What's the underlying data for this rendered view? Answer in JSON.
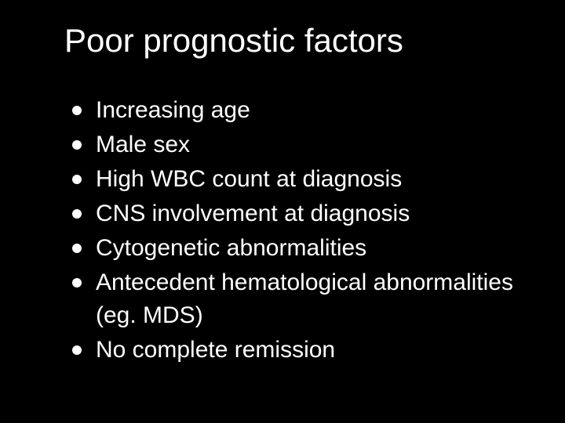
{
  "slide": {
    "title": "Poor prognostic factors",
    "background_color": "#000000",
    "text_color": "#ffffff",
    "title_fontsize": 42,
    "bullet_fontsize": 30,
    "bullet_color": "#ffffff",
    "bullets": [
      "Increasing age",
      "Male sex",
      "High WBC count at diagnosis",
      "CNS involvement at diagnosis",
      "Cytogenetic abnormalities",
      "Antecedent hematological abnormalities (eg. MDS)",
      "No complete remission"
    ]
  }
}
